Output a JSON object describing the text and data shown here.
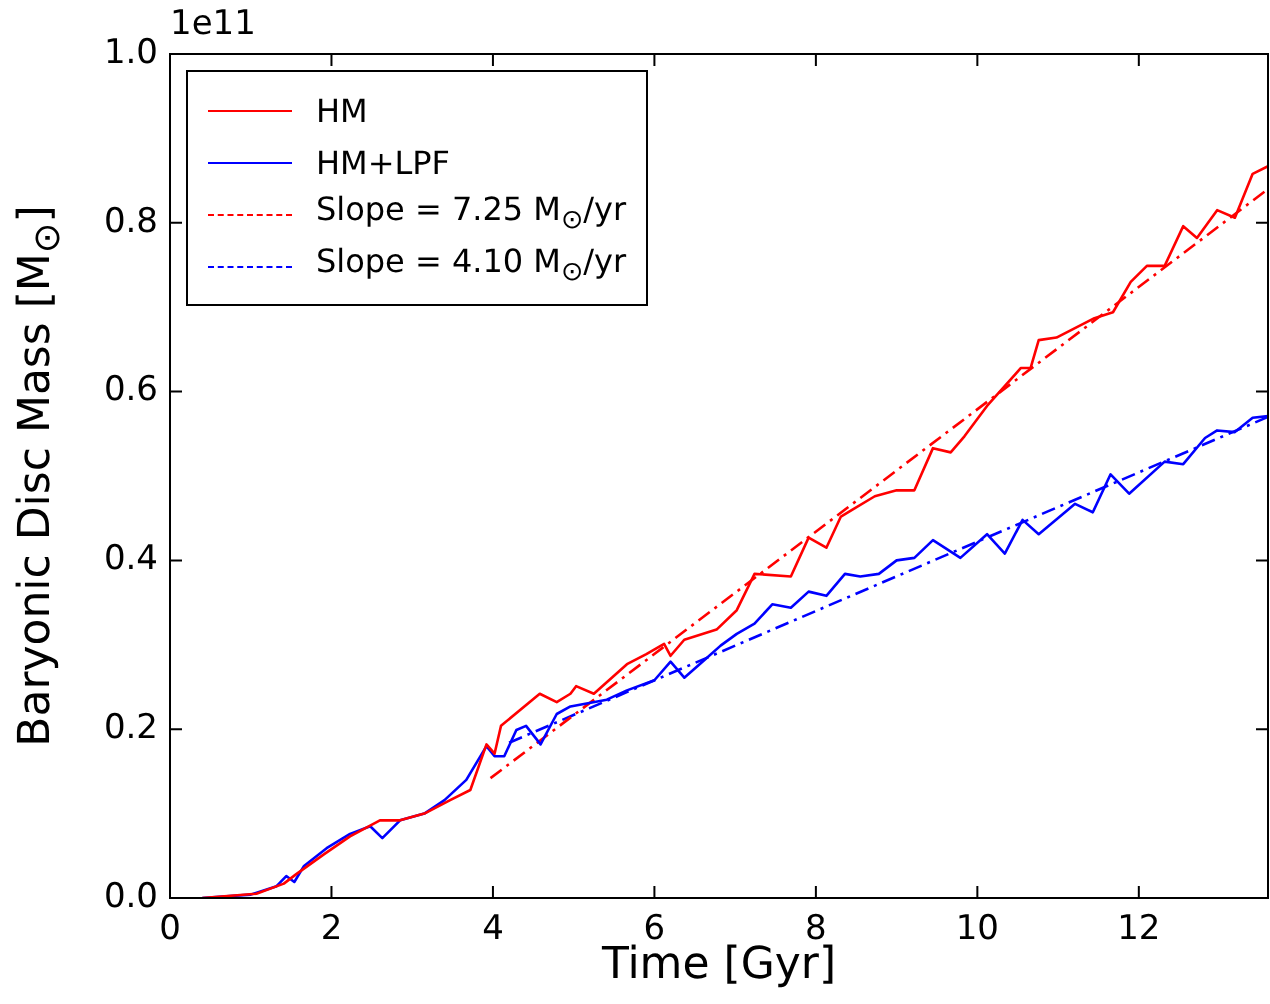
{
  "chart_data": {
    "type": "line",
    "xlabel": "Time [Gyr]",
    "ylabel": "Baryonic Disc Mass [M$_{⊙}$]",
    "annotations": [
      "1e11"
    ],
    "xlim": [
      0,
      13.6
    ],
    "xticks": [
      0,
      2,
      4,
      6,
      8,
      10,
      12
    ],
    "ylim": [
      0,
      1
    ],
    "yticks": [
      {
        "value": 0,
        "label": "0.0"
      },
      {
        "value": 0.2,
        "label": "0.2"
      },
      {
        "value": 0.4,
        "label": "0.4"
      },
      {
        "value": 0.6,
        "label": "0.6"
      },
      {
        "value": 0.8,
        "label": "0.8"
      },
      {
        "value": 1,
        "label": "1.0"
      }
    ],
    "grid": false,
    "legend": "top left",
    "marker": "none",
    "series": [
      {
        "name": "HM",
        "color": "#ff0000",
        "line_style": "solid",
        "x": [
          0.4,
          1.07,
          1.41,
          1.56,
          1.91,
          2.23,
          2.6,
          2.85,
          3.15,
          3.47,
          3.72,
          3.92,
          4.02,
          4.1,
          4.58,
          4.79,
          4.96,
          5.03,
          5.25,
          5.66,
          5.9,
          6.12,
          6.2,
          6.37,
          6.77,
          7.02,
          7.24,
          7.69,
          7.91,
          8.13,
          8.31,
          8.73,
          9.0,
          9.22,
          9.45,
          9.67,
          9.84,
          10.12,
          10.54,
          10.66,
          10.76,
          10.98,
          11.45,
          11.68,
          11.9,
          12.1,
          12.32,
          12.55,
          12.72,
          12.97,
          13.19,
          13.41,
          13.6
        ],
        "values": [
          0,
          0.005,
          0.017,
          0.028,
          0.052,
          0.073,
          0.092,
          0.092,
          0.1,
          0.116,
          0.128,
          0.182,
          0.171,
          0.204,
          0.242,
          0.232,
          0.242,
          0.251,
          0.242,
          0.277,
          0.289,
          0.301,
          0.287,
          0.306,
          0.318,
          0.341,
          0.384,
          0.381,
          0.427,
          0.415,
          0.452,
          0.476,
          0.483,
          0.483,
          0.533,
          0.528,
          0.547,
          0.583,
          0.628,
          0.628,
          0.661,
          0.664,
          0.687,
          0.694,
          0.73,
          0.749,
          0.749,
          0.796,
          0.782,
          0.815,
          0.806,
          0.858,
          0.867
        ]
      },
      {
        "name": "HM+LPF",
        "color": "#0000ff",
        "line_style": "solid",
        "x": [
          0.4,
          1.0,
          1.32,
          1.44,
          1.54,
          1.66,
          1.94,
          2.23,
          2.48,
          2.63,
          2.85,
          3.15,
          3.4,
          3.67,
          3.92,
          4.02,
          4.14,
          4.29,
          4.41,
          4.59,
          4.79,
          4.96,
          5.41,
          5.66,
          6.0,
          6.2,
          6.37,
          6.62,
          6.82,
          7.02,
          7.24,
          7.46,
          7.69,
          7.91,
          8.13,
          8.36,
          8.55,
          8.78,
          9.0,
          9.22,
          9.45,
          9.79,
          10.12,
          10.34,
          10.56,
          10.76,
          11.21,
          11.43,
          11.65,
          11.88,
          12.32,
          12.55,
          12.82,
          12.97,
          13.19,
          13.41,
          13.6
        ],
        "values": [
          0,
          0.004,
          0.014,
          0.026,
          0.019,
          0.038,
          0.059,
          0.076,
          0.085,
          0.071,
          0.092,
          0.1,
          0.116,
          0.14,
          0.18,
          0.168,
          0.168,
          0.199,
          0.204,
          0.182,
          0.218,
          0.227,
          0.235,
          0.246,
          0.258,
          0.28,
          0.261,
          0.282,
          0.299,
          0.313,
          0.325,
          0.348,
          0.344,
          0.363,
          0.358,
          0.384,
          0.381,
          0.384,
          0.4,
          0.403,
          0.424,
          0.403,
          0.431,
          0.408,
          0.448,
          0.431,
          0.467,
          0.457,
          0.502,
          0.479,
          0.517,
          0.514,
          0.545,
          0.554,
          0.552,
          0.569,
          0.571
        ]
      },
      {
        "name": "Slope = 7.25 M$_{⊙}$/yr",
        "color": "#ff0000",
        "line_style": "dashed",
        "x": [
          3.97,
          13.6
        ],
        "values": [
          0.142,
          0.84
        ]
      },
      {
        "name": "Slope = 4.10 M$_{⊙}$/yr",
        "color": "#0000ff",
        "line_style": "dashed",
        "x": [
          4.2,
          13.6
        ],
        "values": [
          0.184,
          0.57
        ]
      }
    ]
  }
}
